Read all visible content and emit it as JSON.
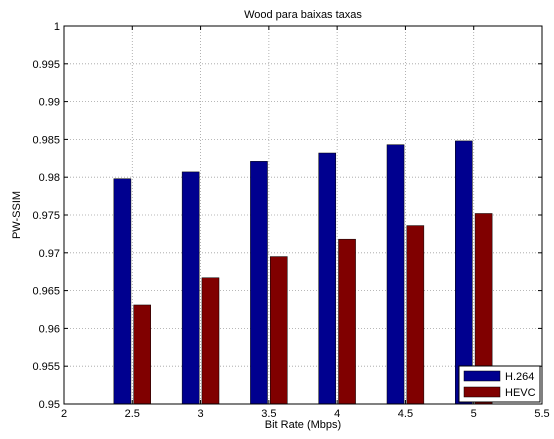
{
  "chart_data": {
    "type": "bar",
    "title": "Wood para baixas taxas",
    "xlabel": "Bit Rate (Mbps)",
    "ylabel": "PW-SSIM",
    "x": [
      2.5,
      3,
      3.5,
      4,
      4.5,
      5
    ],
    "series": [
      {
        "name": "H.264",
        "color": "#00008f",
        "values": [
          0.9798,
          0.9807,
          0.9821,
          0.9832,
          0.9843,
          0.9848
        ]
      },
      {
        "name": "HEVC",
        "color": "#800000",
        "values": [
          0.9631,
          0.9667,
          0.9695,
          0.9718,
          0.9736,
          0.9752
        ]
      }
    ],
    "xlim": [
      2,
      5.5
    ],
    "ylim": [
      0.95,
      1
    ],
    "xticks": [
      2,
      2.5,
      3,
      3.5,
      4,
      4.5,
      5,
      5.5
    ],
    "xtick_labels": [
      "2",
      "2.5",
      "3",
      "3.5",
      "4",
      "4.5",
      "5",
      "5.5"
    ],
    "yticks": [
      0.95,
      0.955,
      0.96,
      0.965,
      0.97,
      0.975,
      0.98,
      0.985,
      0.99,
      0.995,
      1
    ],
    "ytick_labels": [
      "0.95",
      "0.955",
      "0.96",
      "0.965",
      "0.97",
      "0.975",
      "0.98",
      "0.985",
      "0.99",
      "0.995",
      "1"
    ],
    "grid": true,
    "legend_position": "bottom-right"
  }
}
